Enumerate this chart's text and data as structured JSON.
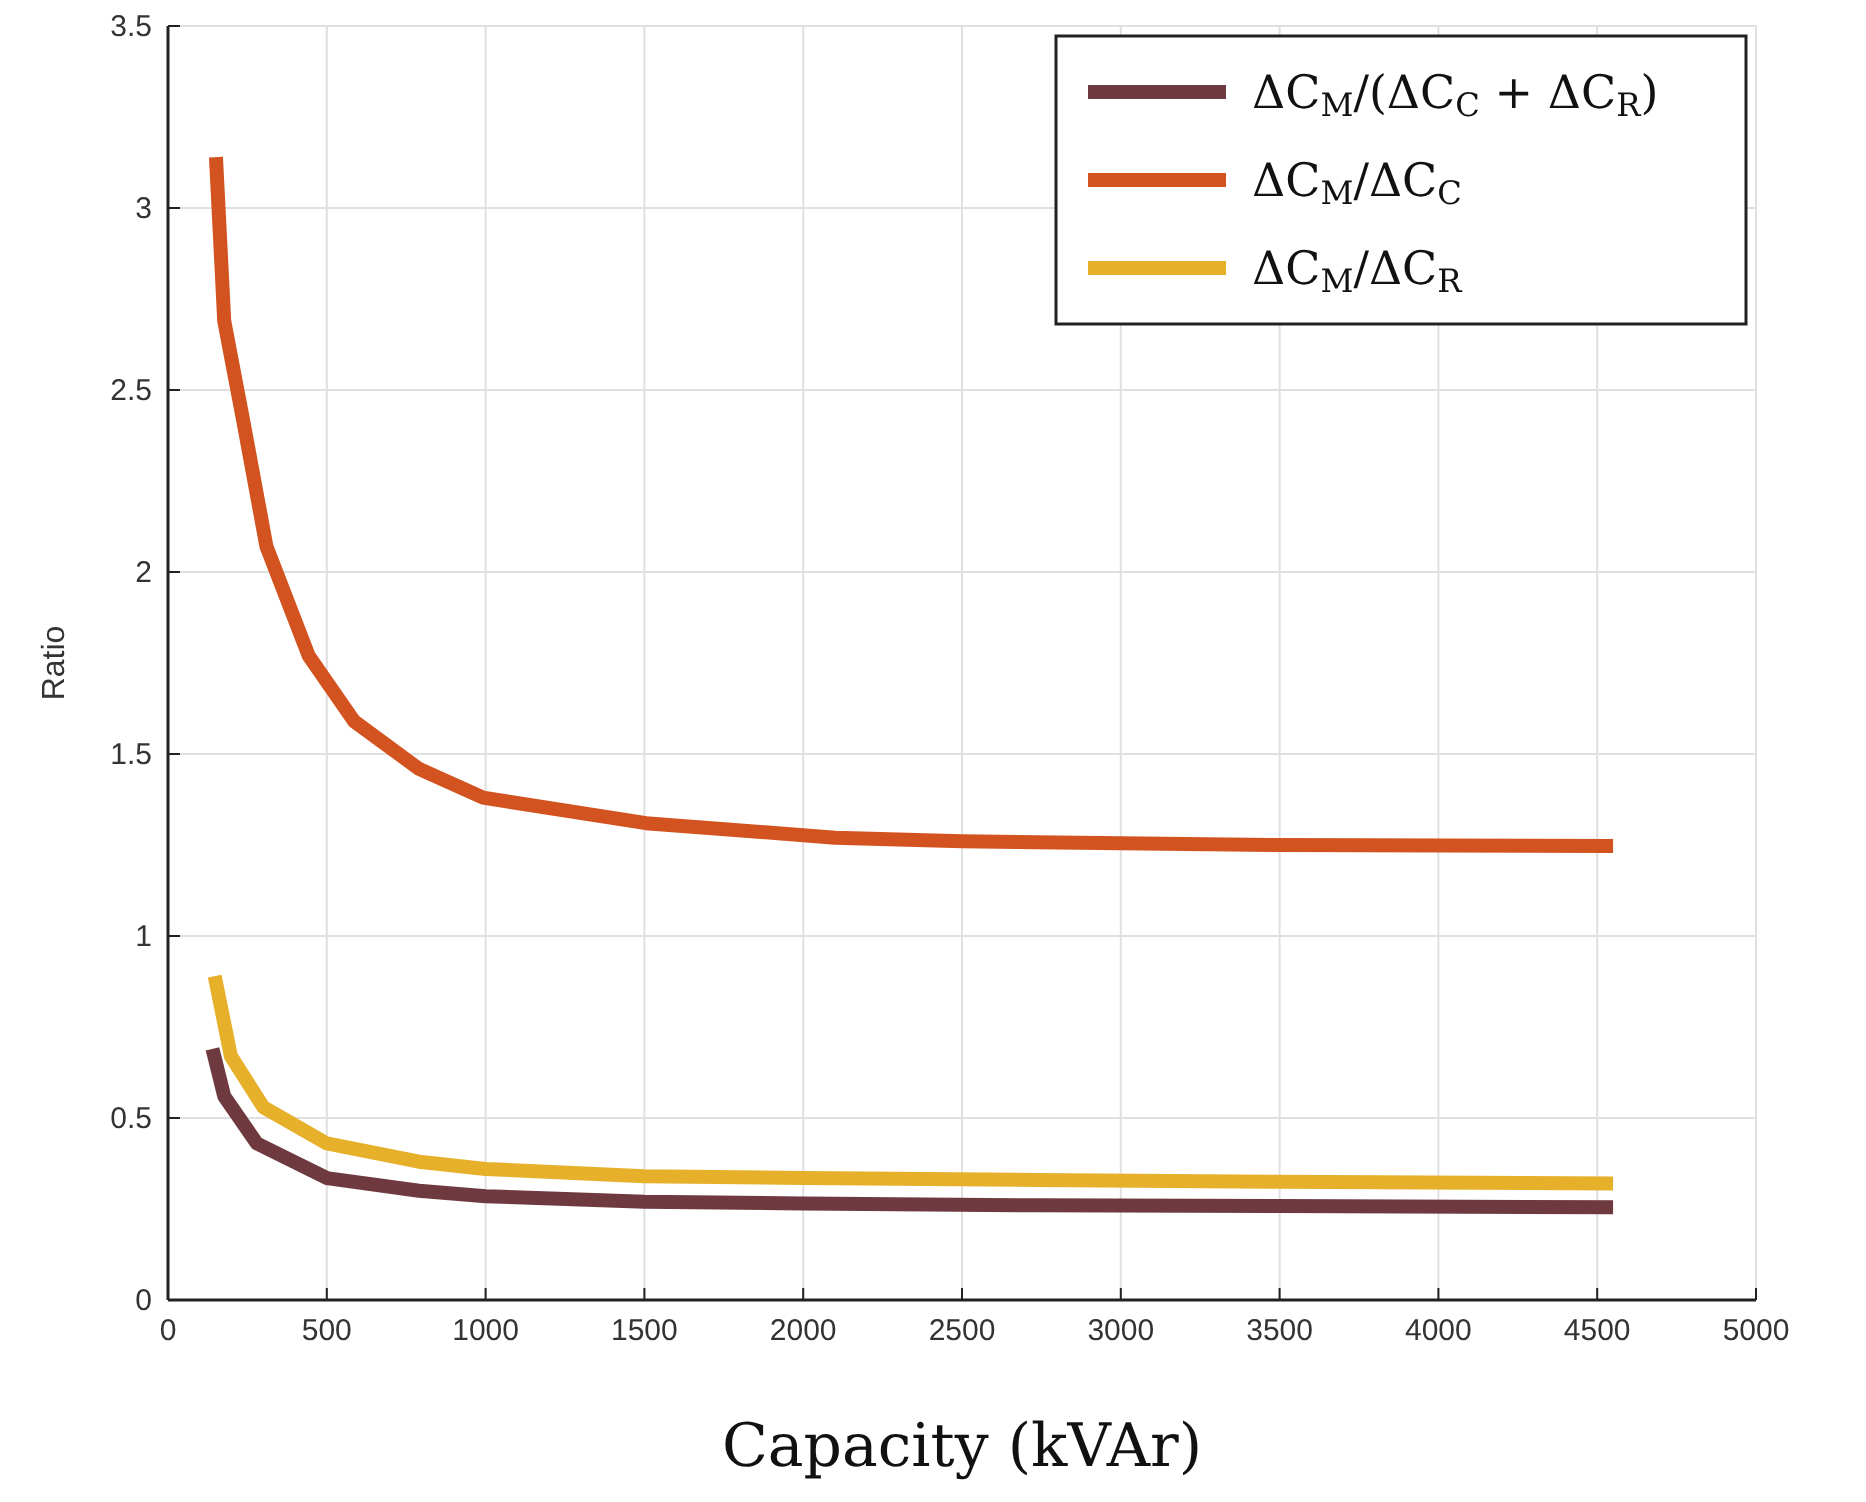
{
  "chart_data": {
    "type": "line",
    "xlabel": "Capacity (kVAr)",
    "ylabel": "Ratio",
    "xlim": [
      0,
      5000
    ],
    "xticks": [
      0,
      500,
      1000,
      1500,
      2000,
      2500,
      3000,
      3500,
      4000,
      4500,
      5000
    ],
    "ylim": [
      0,
      3.5
    ],
    "yticks": [
      0,
      0.5,
      1,
      1.5,
      2,
      2.5,
      3,
      3.5
    ],
    "grid": true,
    "legend": "top right",
    "marker": "none",
    "line_style": "solid",
    "series": [
      {
        "name": "ΔC$_{M}$/(ΔC$_{C}$ + ΔC$_{R}$)",
        "color": "#6e3a3f",
        "x": [
          140,
          177,
          280,
          500,
          790,
          1000,
          1500,
          2000,
          2730,
          3500,
          4550
        ],
        "values": [
          0.69,
          0.56,
          0.43,
          0.335,
          0.3,
          0.285,
          0.27,
          0.265,
          0.26,
          0.258,
          0.255
        ]
      },
      {
        "name": "ΔC$_{M}$/ΔC$_{C}$",
        "color": "#d2531f",
        "x": [
          151,
          177,
          238,
          310,
          443,
          586,
          789,
          992,
          1505,
          2100,
          2500,
          3000,
          3500,
          4550
        ],
        "values": [
          3.14,
          2.69,
          2.41,
          2.07,
          1.77,
          1.59,
          1.46,
          1.38,
          1.31,
          1.27,
          1.26,
          1.255,
          1.25,
          1.247
        ]
      },
      {
        "name": "ΔC$_{M}$/ΔC$_{R}$",
        "color": "#e6b02a",
        "x": [
          147,
          198,
          300,
          500,
          790,
          1000,
          1500,
          2000,
          2730,
          3500,
          4550
        ],
        "values": [
          0.89,
          0.67,
          0.53,
          0.43,
          0.38,
          0.36,
          0.34,
          0.335,
          0.33,
          0.325,
          0.32
        ]
      }
    ]
  }
}
